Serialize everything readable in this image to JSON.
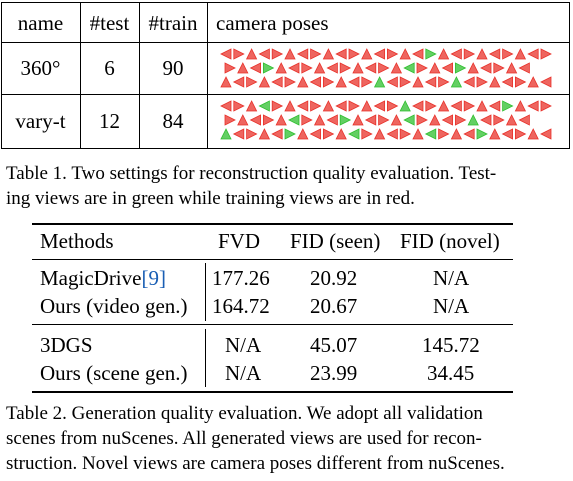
{
  "table1": {
    "headers": [
      "name",
      "#test",
      "#train",
      "camera poses"
    ],
    "rows": [
      {
        "name": "360°",
        "test": "6",
        "train": "90"
      },
      {
        "name": "vary-t",
        "test": "12",
        "train": "84"
      }
    ],
    "caption_lines": [
      "Table 1.  Two settings for reconstruction quality evaluation.  Test-",
      "ing views are in green while training views are in red."
    ],
    "pose_colors": {
      "train": "#e8312a",
      "test": "#2fbf2f"
    }
  },
  "table2": {
    "headers": [
      "Methods",
      "FVD",
      "FID (seen)",
      "FID (novel)"
    ],
    "group1": [
      {
        "method": "MagicDrive",
        "cite": "[9]",
        "fvd": "177.26",
        "fid_seen": "20.92",
        "fid_novel": "N/A"
      },
      {
        "method": "Ours (video gen.)",
        "cite": "",
        "fvd": "164.72",
        "fid_seen": "20.67",
        "fid_novel": "N/A"
      }
    ],
    "group2": [
      {
        "method": "3DGS",
        "cite": "",
        "fvd": "N/A",
        "fid_seen": "45.07",
        "fid_novel": "145.72"
      },
      {
        "method": "Ours (scene gen.)",
        "cite": "",
        "fvd": "N/A",
        "fid_seen": "23.99",
        "fid_novel": "34.45"
      }
    ],
    "caption_lines": [
      "Table 2.  Generation quality evaluation.  We adopt all validation",
      "scenes from nuScenes.  All generated views are used for recon-",
      "struction. Novel views are camera poses different from nuScenes."
    ]
  }
}
